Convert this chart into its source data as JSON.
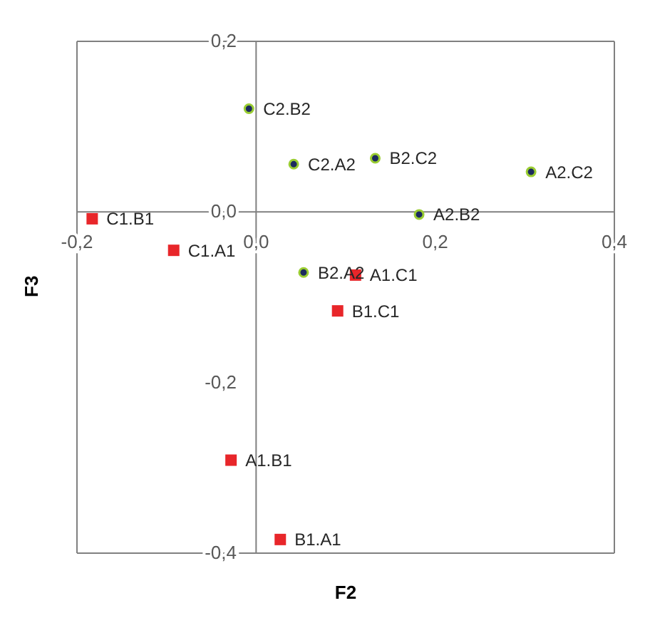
{
  "chart_data": {
    "type": "scatter",
    "xlabel": "F2",
    "ylabel": "F3",
    "xlim": [
      -0.2,
      0.4
    ],
    "ylim": [
      -0.4,
      0.2
    ],
    "xticks": [
      {
        "value": -0.2,
        "label": "-0,2"
      },
      {
        "value": 0,
        "label": "0,0"
      },
      {
        "value": 0.2,
        "label": "0,2"
      },
      {
        "value": 0.4,
        "label": "0,4"
      }
    ],
    "yticks": [
      {
        "value": -0.4,
        "label": "-0,4"
      },
      {
        "value": -0.2,
        "label": "-0,2"
      },
      {
        "value": 0,
        "label": "0,0"
      },
      {
        "value": 0.2,
        "label": "0,2"
      }
    ],
    "grid": false,
    "legend": false,
    "series": [
      {
        "color": "#1c2b5e",
        "marker": "circle",
        "x": [
          -0.008,
          0.042,
          0.133,
          0.307,
          0.182,
          0.053
        ],
        "values": [
          0.121,
          0.056,
          0.063,
          0.047,
          -0.003,
          -0.071
        ]
      },
      {
        "color": "#e8262a",
        "marker": "square",
        "x": [
          -0.183,
          -0.092,
          0.111,
          0.091,
          -0.028,
          0.027
        ],
        "values": [
          -0.008,
          -0.045,
          -0.074,
          -0.116,
          -0.291,
          -0.384
        ]
      }
    ],
    "annotations": [
      {
        "text": "C2.B2",
        "x": -0.008,
        "y": 0.121
      },
      {
        "text": "C2.A2",
        "x": 0.042,
        "y": 0.056
      },
      {
        "text": "B2.C2",
        "x": 0.133,
        "y": 0.063
      },
      {
        "text": "A2.C2",
        "x": 0.307,
        "y": 0.047
      },
      {
        "text": "A2.B2",
        "x": 0.182,
        "y": -0.003
      },
      {
        "text": "B2.A2",
        "x": 0.053,
        "y": -0.071
      },
      {
        "text": "C1.B1",
        "x": -0.183,
        "y": -0.008
      },
      {
        "text": "C1.A1",
        "x": -0.092,
        "y": -0.045
      },
      {
        "text": "A1.C1",
        "x": 0.111,
        "y": -0.074
      },
      {
        "text": "B1.C1",
        "x": 0.091,
        "y": -0.116
      },
      {
        "text": "A1.B1",
        "x": -0.028,
        "y": -0.291
      },
      {
        "text": "B1.A1",
        "x": 0.027,
        "y": -0.384
      }
    ]
  }
}
